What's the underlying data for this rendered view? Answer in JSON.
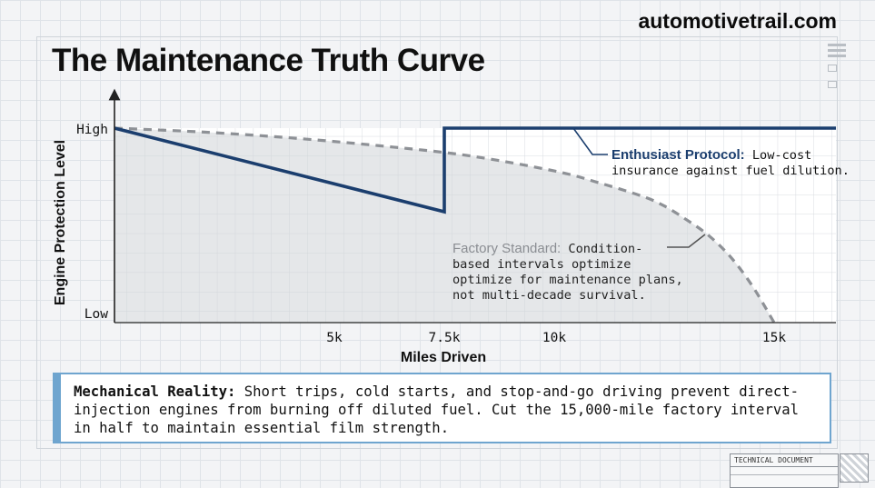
{
  "site": "automotivetrail.com",
  "title": "The Maintenance Truth Curve",
  "chart_data": {
    "type": "line",
    "ylabel": "Engine Protection Level",
    "xlabel": "Miles Driven",
    "y_ticks": [
      {
        "label": "High",
        "value": 1
      },
      {
        "label": "Low",
        "value": 0
      }
    ],
    "x_ticks": [
      {
        "label": "5k",
        "value": 5000
      },
      {
        "label": "7.5k",
        "value": 7500
      },
      {
        "label": "10k",
        "value": 10000
      },
      {
        "label": "15k",
        "value": 15000
      }
    ],
    "xlim": [
      0,
      15000
    ],
    "ylim": [
      0,
      1
    ],
    "grid": true,
    "series": [
      {
        "name": "Factory Standard",
        "style": "dashed",
        "color": "#8e9196",
        "x": [
          0,
          2000,
          4000,
          6000,
          8000,
          10000,
          11000,
          12000,
          12500,
          13000,
          13500,
          14000,
          14500,
          15000
        ],
        "y": [
          1,
          0.98,
          0.95,
          0.91,
          0.86,
          0.78,
          0.72,
          0.65,
          0.6,
          0.53,
          0.45,
          0.34,
          0.19,
          0
        ]
      },
      {
        "name": "Enthusiast Protocol",
        "style": "solid",
        "color": "#1b3e6e",
        "x": [
          0,
          7500,
          7500,
          15000
        ],
        "y": [
          1,
          0.57,
          1,
          1
        ]
      }
    ],
    "annotations": [
      {
        "label": "Enthusiast Protocol:",
        "text_lines": [
          "Low-cost",
          "insurance against fuel dilution."
        ]
      },
      {
        "label": "Factory Standard:",
        "text_lines": [
          "Condition-",
          "based intervals optimize",
          "optimize for maintenance plans,",
          "not multi-decade survival."
        ]
      }
    ]
  },
  "callout": {
    "label": "Mechanical Reality:",
    "text": "Short trips, cold starts, and stop-and-go driving prevent direct-injection engines from burning off diluted fuel. Cut the 15,000-mile factory interval in half to maintain essential film strength."
  },
  "techdoc": {
    "header": "TECHNICAL DOCUMENT"
  }
}
